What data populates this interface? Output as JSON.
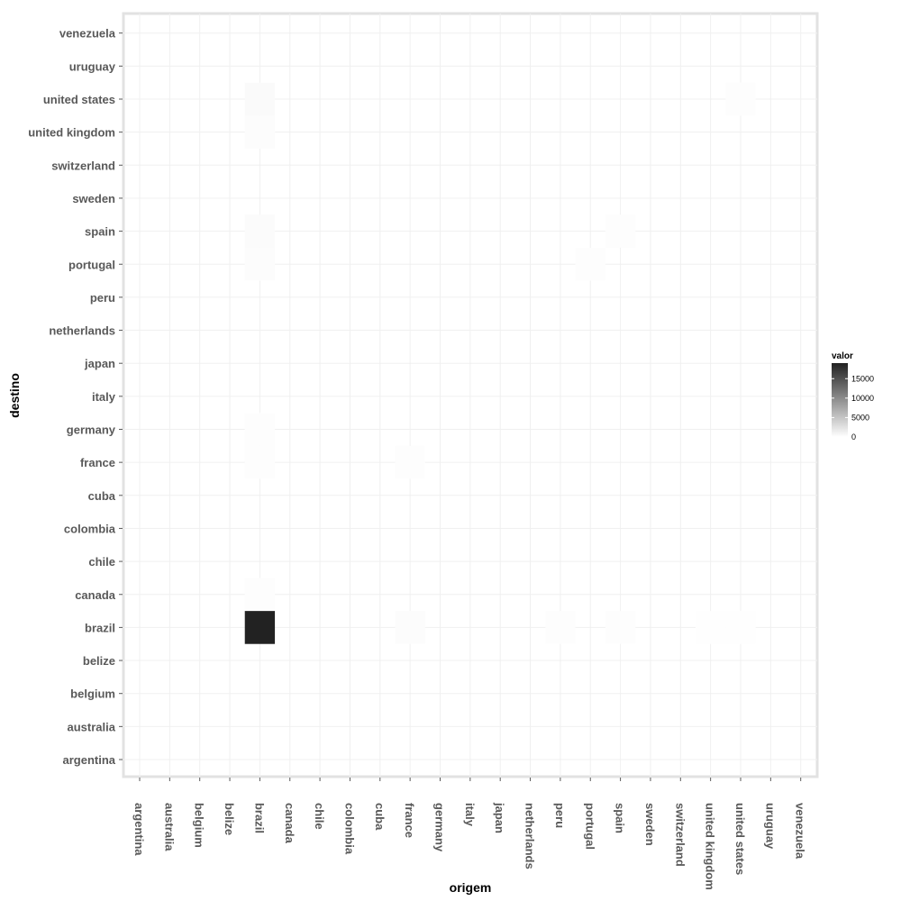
{
  "chart_data": {
    "type": "heatmap",
    "title": "",
    "xlabel": "origem",
    "ylabel": "destino",
    "x_categories": [
      "argentina",
      "australia",
      "belgium",
      "belize",
      "brazil",
      "canada",
      "chile",
      "colombia",
      "cuba",
      "france",
      "germany",
      "italy",
      "japan",
      "netherlands",
      "peru",
      "portugal",
      "spain",
      "sweden",
      "switzerland",
      "united kingdom",
      "united states",
      "uruguay",
      "venezuela"
    ],
    "y_categories": [
      "argentina",
      "australia",
      "belgium",
      "belize",
      "brazil",
      "canada",
      "chile",
      "colombia",
      "cuba",
      "france",
      "germany",
      "italy",
      "japan",
      "netherlands",
      "peru",
      "portugal",
      "spain",
      "sweden",
      "switzerland",
      "united kingdom",
      "united states",
      "uruguay",
      "venezuela"
    ],
    "cells": [
      {
        "origem": "brazil",
        "destino": "brazil",
        "valor": 19000
      },
      {
        "origem": "brazil",
        "destino": "united states",
        "valor": 400
      },
      {
        "origem": "brazil",
        "destino": "united kingdom",
        "valor": 250
      },
      {
        "origem": "brazil",
        "destino": "spain",
        "valor": 350
      },
      {
        "origem": "brazil",
        "destino": "portugal",
        "valor": 250
      },
      {
        "origem": "brazil",
        "destino": "germany",
        "valor": 200
      },
      {
        "origem": "brazil",
        "destino": "france",
        "valor": 200
      },
      {
        "origem": "brazil",
        "destino": "canada",
        "valor": 200
      },
      {
        "origem": "france",
        "destino": "brazil",
        "valor": 250
      },
      {
        "origem": "france",
        "destino": "france",
        "valor": 180
      },
      {
        "origem": "peru",
        "destino": "brazil",
        "valor": 150
      },
      {
        "origem": "portugal",
        "destino": "portugal",
        "valor": 150
      },
      {
        "origem": "spain",
        "destino": "brazil",
        "valor": 150
      },
      {
        "origem": "spain",
        "destino": "spain",
        "valor": 150
      },
      {
        "origem": "united states",
        "destino": "united states",
        "valor": 150
      },
      {
        "origem": "united kingdom",
        "destino": "brazil",
        "valor": 100
      },
      {
        "origem": "united states",
        "destino": "brazil",
        "valor": 100
      }
    ],
    "legend": {
      "title": "valor",
      "ticks": [
        0,
        5000,
        10000,
        15000
      ],
      "range": [
        0,
        19000
      ],
      "low_color": "#ffffff",
      "high_color": "#222222",
      "position": "right"
    },
    "grid": true
  }
}
